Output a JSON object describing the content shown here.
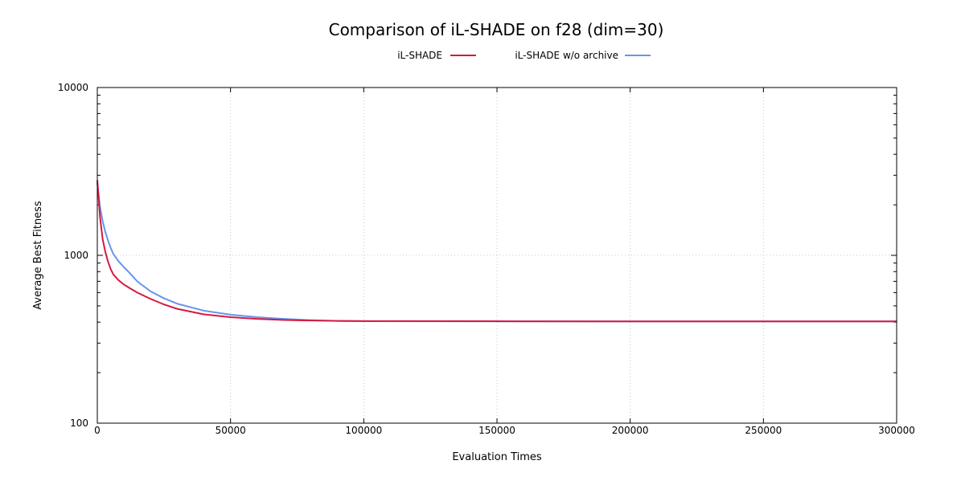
{
  "chart_data": {
    "type": "line",
    "title": "Comparison of iL-SHADE on f28 (dim=30)",
    "xlabel": "Evaluation Times",
    "ylabel": "Average Best Fitness",
    "xlim": [
      0,
      300000
    ],
    "ylim": [
      100,
      10000
    ],
    "yscale": "log",
    "grid": true,
    "legend_position": "top-center",
    "x_ticks": [
      "0",
      "50000",
      "100000",
      "150000",
      "200000",
      "250000",
      "300000"
    ],
    "x_tick_values": [
      0,
      50000,
      100000,
      150000,
      200000,
      250000,
      300000
    ],
    "y_ticks": [
      "100",
      "1000",
      "10000"
    ],
    "y_tick_values": [
      100,
      1000,
      10000
    ],
    "series": [
      {
        "name": "iL-SHADE",
        "color": "#d7193f",
        "x": [
          0,
          500,
          1000,
          2000,
          3000,
          4000,
          5000,
          6000,
          8000,
          10000,
          12000,
          15000,
          20000,
          25000,
          30000,
          40000,
          50000,
          60000,
          70000,
          80000,
          90000,
          100000,
          150000,
          200000,
          250000,
          300000
        ],
        "y": [
          2800,
          2200,
          1700,
          1250,
          1050,
          920,
          830,
          770,
          710,
          670,
          640,
          600,
          550,
          510,
          480,
          445,
          428,
          418,
          412,
          409,
          407,
          406,
          405,
          404,
          404,
          404
        ]
      },
      {
        "name": "iL-SHADE w/o archive",
        "color": "#6495ed",
        "x": [
          0,
          500,
          1000,
          2000,
          3000,
          4000,
          5000,
          6000,
          8000,
          10000,
          12000,
          15000,
          20000,
          25000,
          30000,
          40000,
          50000,
          60000,
          70000,
          80000,
          90000,
          100000,
          150000,
          200000,
          250000,
          300000
        ],
        "y": [
          2700,
          2300,
          1950,
          1600,
          1380,
          1230,
          1110,
          1020,
          920,
          850,
          790,
          700,
          610,
          555,
          515,
          468,
          443,
          428,
          418,
          411,
          407,
          405,
          404,
          404,
          404,
          404
        ]
      }
    ]
  }
}
